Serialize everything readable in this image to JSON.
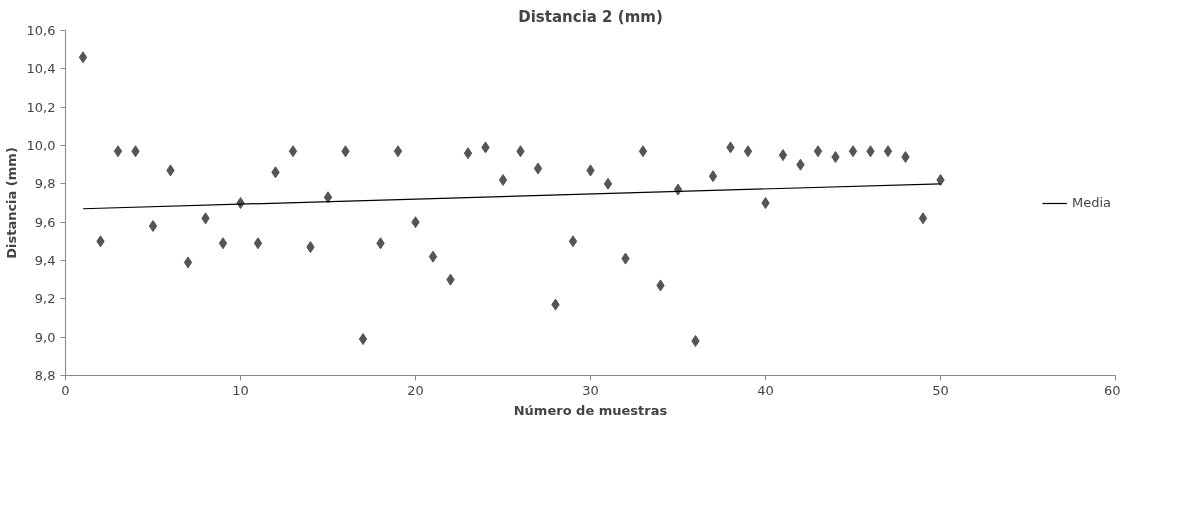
{
  "chart_data": {
    "type": "scatter",
    "title": "Distancia 2 (mm)",
    "xlabel": "Número de muestras",
    "ylabel": "Distancia (mm)",
    "xlim": [
      0,
      60
    ],
    "xticks": [
      0,
      10,
      20,
      30,
      40,
      50,
      60
    ],
    "ylim": [
      8.8,
      10.6
    ],
    "yticks": [
      {
        "value": 8.8,
        "label": "8,8"
      },
      {
        "value": 9.0,
        "label": "9,0"
      },
      {
        "value": 9.2,
        "label": "9,2"
      },
      {
        "value": 9.4,
        "label": "9,4"
      },
      {
        "value": 9.6,
        "label": "9,6"
      },
      {
        "value": 9.8,
        "label": "9,8"
      },
      {
        "value": 10.0,
        "label": "10,0"
      },
      {
        "value": 10.2,
        "label": "10,2"
      },
      {
        "value": 10.4,
        "label": "10,4"
      },
      {
        "value": 10.6,
        "label": "10,6"
      }
    ],
    "grid": false,
    "legend": "right",
    "series": [
      {
        "marker": "diamond",
        "color": "#555555",
        "x": [
          1,
          2,
          3,
          4,
          5,
          6,
          7,
          8,
          9,
          10,
          11,
          12,
          13,
          14,
          15,
          16,
          17,
          18,
          19,
          20,
          21,
          22,
          23,
          24,
          25,
          26,
          27,
          28,
          29,
          30,
          31,
          32,
          33,
          34,
          35,
          36,
          37,
          38,
          39,
          40,
          41,
          42,
          43,
          44,
          45,
          46,
          47,
          48,
          49,
          50
        ],
        "values": [
          10.46,
          9.5,
          9.97,
          9.97,
          9.58,
          9.87,
          9.39,
          9.62,
          9.49,
          9.7,
          9.49,
          9.86,
          9.97,
          9.47,
          9.73,
          9.97,
          8.99,
          9.49,
          9.97,
          9.6,
          9.42,
          9.3,
          9.96,
          9.99,
          9.82,
          9.97,
          9.88,
          9.17,
          9.5,
          9.87,
          9.8,
          9.41,
          9.97,
          9.27,
          9.77,
          8.98,
          9.84,
          9.99,
          9.97,
          9.7,
          9.95,
          9.9,
          9.97,
          9.94,
          9.97,
          9.97,
          9.97,
          9.94,
          9.62,
          9.82
        ]
      },
      {
        "type": "line",
        "name": "Media",
        "color": "#000000",
        "x": [
          1,
          50
        ],
        "values": [
          9.67,
          9.8
        ]
      }
    ]
  }
}
